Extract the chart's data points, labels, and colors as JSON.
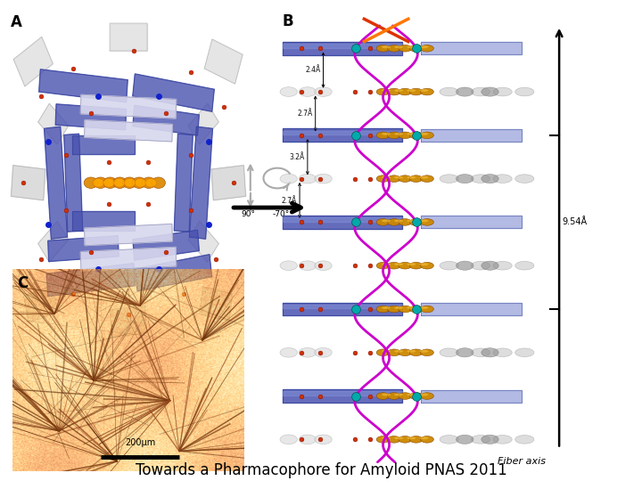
{
  "title": "Towards a Pharmacophore for Amyloid PNAS 2011",
  "title_fontsize": 12,
  "title_color": "#000000",
  "background_color": "#ffffff",
  "panel_A_label": "A",
  "panel_B_label": "B",
  "panel_C_label": "C",
  "fiber_axis_label": "Fiber axis",
  "scale_bar_label": "200μm",
  "rotation_label_1": "90°",
  "rotation_label_2": "-70°",
  "dim_labels": [
    "2.4Å",
    "2.7Å",
    "3.2Å",
    "2.7Å"
  ],
  "scale_label": "9.54Å",
  "blue_dark": "#4a52b0",
  "blue_light": "#8b96d4",
  "orange_color": "#cc8800",
  "magenta_color": "#cc00cc",
  "cyan_color": "#00aaaa",
  "red_color": "#cc3300",
  "grey_loop": "#aaaaaa",
  "white_strand": "#e8e8f0"
}
